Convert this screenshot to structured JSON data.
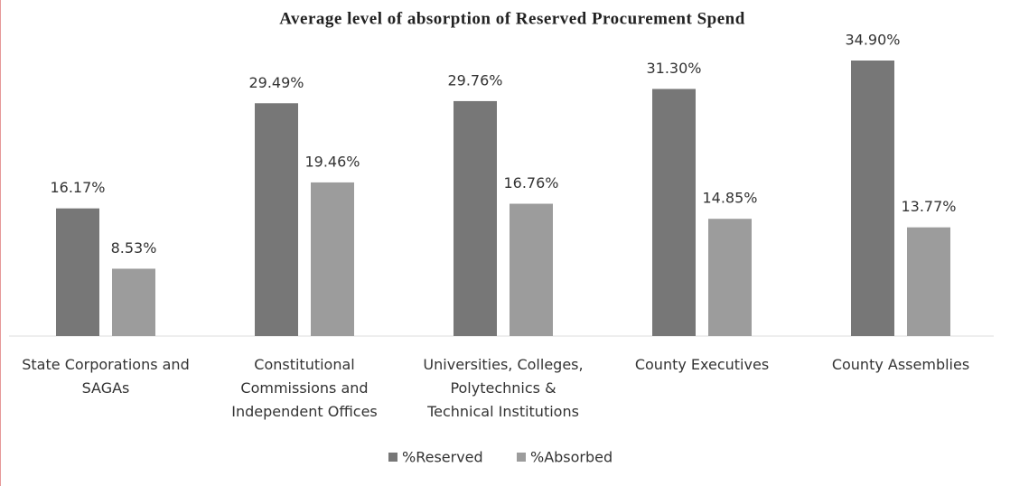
{
  "chart_data": {
    "type": "bar",
    "title": "Average level of absorption of Reserved Procurement Spend",
    "categories": [
      "State Corporations and SAGAs",
      "Constitutional Commissions and Independent Offices",
      "Universities, Colleges, Polytechnics & Technical Institutions",
      "County Executives",
      "County Assemblies"
    ],
    "series": [
      {
        "name": "%Reserved",
        "color": "#777777",
        "values": [
          16.17,
          29.49,
          29.76,
          31.3,
          34.9
        ],
        "value_labels": [
          "16.17%",
          "29.49%",
          "29.76%",
          "31.30%",
          "34.90%"
        ]
      },
      {
        "name": "%Absorbed",
        "color": "#9c9c9c",
        "values": [
          8.53,
          19.46,
          16.76,
          14.85,
          13.77
        ],
        "value_labels": [
          "8.53%",
          "19.46%",
          "16.76%",
          "14.85%",
          "13.77%"
        ]
      }
    ],
    "legend": "bottom"
  }
}
